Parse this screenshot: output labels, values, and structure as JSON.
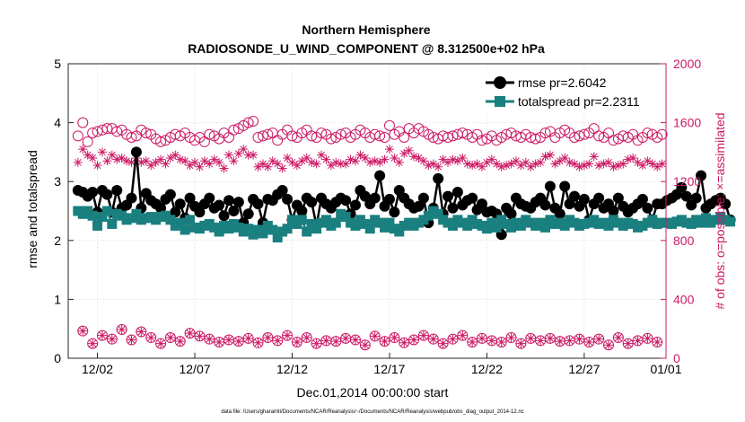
{
  "chart_data": {
    "type": "line",
    "title_line1": "Northern Hemisphere",
    "title_line2": "RADIOSONDE_U_WIND_COMPONENT @ 8.312500e+02 hPa",
    "xlabel": "Dec.01,2014 00:00:00 start",
    "ylabel_left": "rmse and totalspread",
    "ylabel_right": "# of obs: o=possible; ×=assimilated",
    "footnote": "data file: /Users/gharamti/Documents/NCAR/Reanalysis/~/Documents/NCAR/Reanalysis/webpub/obs_diag_output_2014-12.nc",
    "xlim": [
      0.5,
      31.2
    ],
    "ylim_left": [
      0,
      5
    ],
    "ylim_right": [
      0,
      2000
    ],
    "x_ticks": [
      {
        "value": 2,
        "label": "12/02"
      },
      {
        "value": 7,
        "label": "12/07"
      },
      {
        "value": 12,
        "label": "12/12"
      },
      {
        "value": 17,
        "label": "12/17"
      },
      {
        "value": 22,
        "label": "12/22"
      },
      {
        "value": 27,
        "label": "12/27"
      },
      {
        "value": 32,
        "label": "01/01"
      }
    ],
    "y_ticks_left": [
      {
        "value": 0,
        "label": "0"
      },
      {
        "value": 1,
        "label": "1"
      },
      {
        "value": 2,
        "label": "2"
      },
      {
        "value": 3,
        "label": "3"
      },
      {
        "value": 4,
        "label": "4"
      },
      {
        "value": 5,
        "label": "5"
      }
    ],
    "y_ticks_right": [
      {
        "value": 0,
        "label": "0"
      },
      {
        "value": 400,
        "label": "400"
      },
      {
        "value": 800,
        "label": "800"
      },
      {
        "value": 1200,
        "label": "1200"
      },
      {
        "value": 1600,
        "label": "1600"
      },
      {
        "value": 2000,
        "label": "2000"
      }
    ],
    "x_start": 1,
    "x_step": 0.25,
    "series": [
      {
        "name": "rmse",
        "legend_label": "rmse pr=2.6042",
        "color": "#000000",
        "marker": "filled-circle",
        "values": [
          2.85,
          2.82,
          2.75,
          2.82,
          2.48,
          2.85,
          2.78,
          2.48,
          2.85,
          2.55,
          2.6,
          2.72,
          3.5,
          2.55,
          2.8,
          2.68,
          2.62,
          2.55,
          2.7,
          2.78,
          2.48,
          2.62,
          2.38,
          2.72,
          2.58,
          2.48,
          2.62,
          2.72,
          2.55,
          2.6,
          2.42,
          2.68,
          2.5,
          2.65,
          2.3,
          2.45,
          2.7,
          2.62,
          2.3,
          2.7,
          2.68,
          2.78,
          2.85,
          2.7,
          2.35,
          2.6,
          2.5,
          2.72,
          2.65,
          2.25,
          2.72,
          2.62,
          2.55,
          2.65,
          2.72,
          2.68,
          2.45,
          2.6,
          2.85,
          2.75,
          2.62,
          2.72,
          3.1,
          2.58,
          2.7,
          2.48,
          2.85,
          2.72,
          2.62,
          2.55,
          2.58,
          2.72,
          2.3,
          2.55,
          3.05,
          2.45,
          2.75,
          2.55,
          2.82,
          2.6,
          2.68,
          2.72,
          2.52,
          2.62,
          2.48,
          2.5,
          2.45,
          2.1,
          2.55,
          2.45,
          2.72,
          2.62,
          2.58,
          2.55,
          2.65,
          2.72,
          2.6,
          2.92,
          2.55,
          2.45,
          2.92,
          2.62,
          2.75,
          2.58,
          2.7,
          2.35,
          2.62,
          2.72,
          2.55,
          2.62,
          2.5,
          2.72,
          2.58,
          2.48,
          2.55,
          2.62,
          2.7,
          2.55,
          2.35,
          2.62,
          2.62,
          2.68,
          2.72,
          2.78,
          2.9,
          2.75,
          2.6,
          2.72,
          3.1,
          2.55,
          2.62,
          2.68,
          2.72,
          2.62,
          2.35
        ]
      },
      {
        "name": "totalspread",
        "legend_label": "totalspread pr=2.2311",
        "color": "#1a7f7f",
        "marker": "filled-square",
        "values": [
          2.5,
          2.45,
          2.5,
          2.42,
          2.25,
          2.4,
          2.5,
          2.28,
          2.45,
          2.42,
          2.35,
          2.38,
          2.45,
          2.35,
          2.38,
          2.4,
          2.35,
          2.4,
          2.42,
          2.35,
          2.25,
          2.3,
          2.18,
          2.35,
          2.22,
          2.2,
          2.25,
          2.28,
          2.22,
          2.15,
          2.25,
          2.2,
          2.28,
          2.22,
          2.15,
          2.2,
          2.1,
          2.18,
          2.12,
          2.25,
          2.18,
          2.05,
          2.15,
          2.2,
          2.35,
          2.28,
          2.35,
          2.15,
          2.28,
          2.2,
          2.3,
          2.35,
          2.25,
          2.3,
          2.45,
          2.4,
          2.3,
          2.25,
          2.35,
          2.28,
          2.2,
          2.35,
          2.3,
          2.22,
          2.3,
          2.2,
          2.15,
          2.25,
          2.3,
          2.25,
          2.3,
          2.35,
          2.42,
          2.5,
          2.45,
          2.35,
          2.3,
          2.25,
          2.35,
          2.3,
          2.25,
          2.35,
          2.28,
          2.25,
          2.2,
          2.3,
          2.22,
          2.35,
          2.28,
          2.22,
          2.3,
          2.25,
          2.35,
          2.3,
          2.25,
          2.3,
          2.22,
          2.35,
          2.28,
          2.3,
          2.25,
          2.35,
          2.3,
          2.25,
          2.28,
          2.3,
          2.35,
          2.28,
          2.3,
          2.25,
          2.35,
          2.3,
          2.25,
          2.3,
          2.28,
          2.22,
          2.25,
          2.3,
          2.35,
          2.28,
          2.3,
          2.3,
          2.28,
          2.32,
          2.35,
          2.3,
          2.28,
          2.35,
          2.3,
          2.38,
          2.3,
          2.35,
          2.4,
          2.35,
          2.32
        ]
      },
      {
        "name": "obs possible",
        "axis": "right",
        "color": "#cc1a66",
        "marker": "open-circle",
        "values": [
          1510,
          1600,
          1470,
          1530,
          1540,
          1550,
          1560,
          1560,
          1540,
          1550,
          1520,
          1500,
          1510,
          1550,
          1530,
          1520,
          1490,
          1470,
          1480,
          1500,
          1520,
          1510,
          1530,
          1500,
          1480,
          1500,
          1470,
          1520,
          1510,
          1490,
          1530,
          1500,
          1550,
          1560,
          1580,
          1600,
          1610,
          1500,
          1510,
          1520,
          1530,
          1480,
          1520,
          1550,
          1510,
          1500,
          1530,
          1550,
          1510,
          1500,
          1530,
          1520,
          1490,
          1500,
          1520,
          1530,
          1500,
          1520,
          1550,
          1530,
          1500,
          1520,
          1510,
          1500,
          1580,
          1520,
          1540,
          1500,
          1560,
          1530,
          1560,
          1540,
          1520,
          1500,
          1490,
          1510,
          1500,
          1510,
          1520,
          1530,
          1520,
          1500,
          1520,
          1480,
          1490,
          1510,
          1480,
          1500,
          1520,
          1530,
          1510,
          1500,
          1520,
          1500,
          1490,
          1500,
          1530,
          1540,
          1500,
          1530,
          1550,
          1530,
          1500,
          1510,
          1520,
          1530,
          1560,
          1510,
          1500,
          1530,
          1480,
          1490,
          1510,
          1500,
          1520,
          1480,
          1500,
          1530,
          1520,
          1500,
          1520,
          1500,
          1480,
          1510,
          1530,
          1520,
          1500,
          1490,
          1510,
          1520,
          1510,
          1500,
          1500,
          1510,
          1500
        ]
      },
      {
        "name": "obs assimilated",
        "axis": "right",
        "color": "#cc1a66",
        "marker": "asterisk",
        "values": [
          1330,
          1420,
          1380,
          1360,
          1310,
          1400,
          1340,
          1380,
          1350,
          1360,
          1340,
          1330,
          1360,
          1330,
          1340,
          1310,
          1330,
          1350,
          1320,
          1360,
          1380,
          1350,
          1340,
          1310,
          1330,
          1300,
          1340,
          1320,
          1350,
          1330,
          1290,
          1380,
          1340,
          1390,
          1420,
          1380,
          1380,
          1300,
          1320,
          1300,
          1340,
          1320,
          1290,
          1360,
          1330,
          1310,
          1340,
          1360,
          1330,
          1320,
          1380,
          1350,
          1310,
          1330,
          1320,
          1320,
          1350,
          1340,
          1380,
          1360,
          1330,
          1340,
          1330,
          1350,
          1420,
          1360,
          1330,
          1390,
          1410,
          1370,
          1360,
          1340,
          1310,
          1320,
          1300,
          1350,
          1330,
          1350,
          1340,
          1360,
          1320,
          1310,
          1320,
          1300,
          1330,
          1350,
          1320,
          1300,
          1310,
          1320,
          1340,
          1310,
          1330,
          1300,
          1320,
          1330,
          1370,
          1380,
          1320,
          1340,
          1360,
          1330,
          1320,
          1300,
          1310,
          1320,
          1370,
          1310,
          1320,
          1330,
          1300,
          1310,
          1320,
          1350,
          1360,
          1330,
          1310,
          1340,
          1320,
          1300,
          1320,
          1330,
          1310,
          1320,
          1340,
          1330,
          1310,
          1320,
          1300,
          1320,
          1340,
          1310,
          1320,
          1330,
          1310
        ]
      },
      {
        "name": "obs possible (sparse)",
        "axis": "right",
        "color": "#cc1a66",
        "marker": "circle-plus",
        "x_start": 1.25,
        "x_step": 0.5,
        "values": [
          185,
          100,
          155,
          130,
          195,
          125,
          180,
          140,
          100,
          140,
          115,
          170,
          150,
          130,
          110,
          125,
          115,
          135,
          105,
          140,
          120,
          155,
          110,
          140,
          100,
          120,
          115,
          135,
          125,
          90,
          150,
          115,
          140,
          105,
          125,
          155,
          130,
          100,
          130,
          155,
          110,
          135,
          120,
          110,
          140,
          100,
          135,
          120,
          135,
          115,
          120,
          130,
          110,
          130,
          90,
          140,
          100,
          120,
          135,
          110,
          125,
          100,
          95,
          0
        ]
      }
    ]
  }
}
